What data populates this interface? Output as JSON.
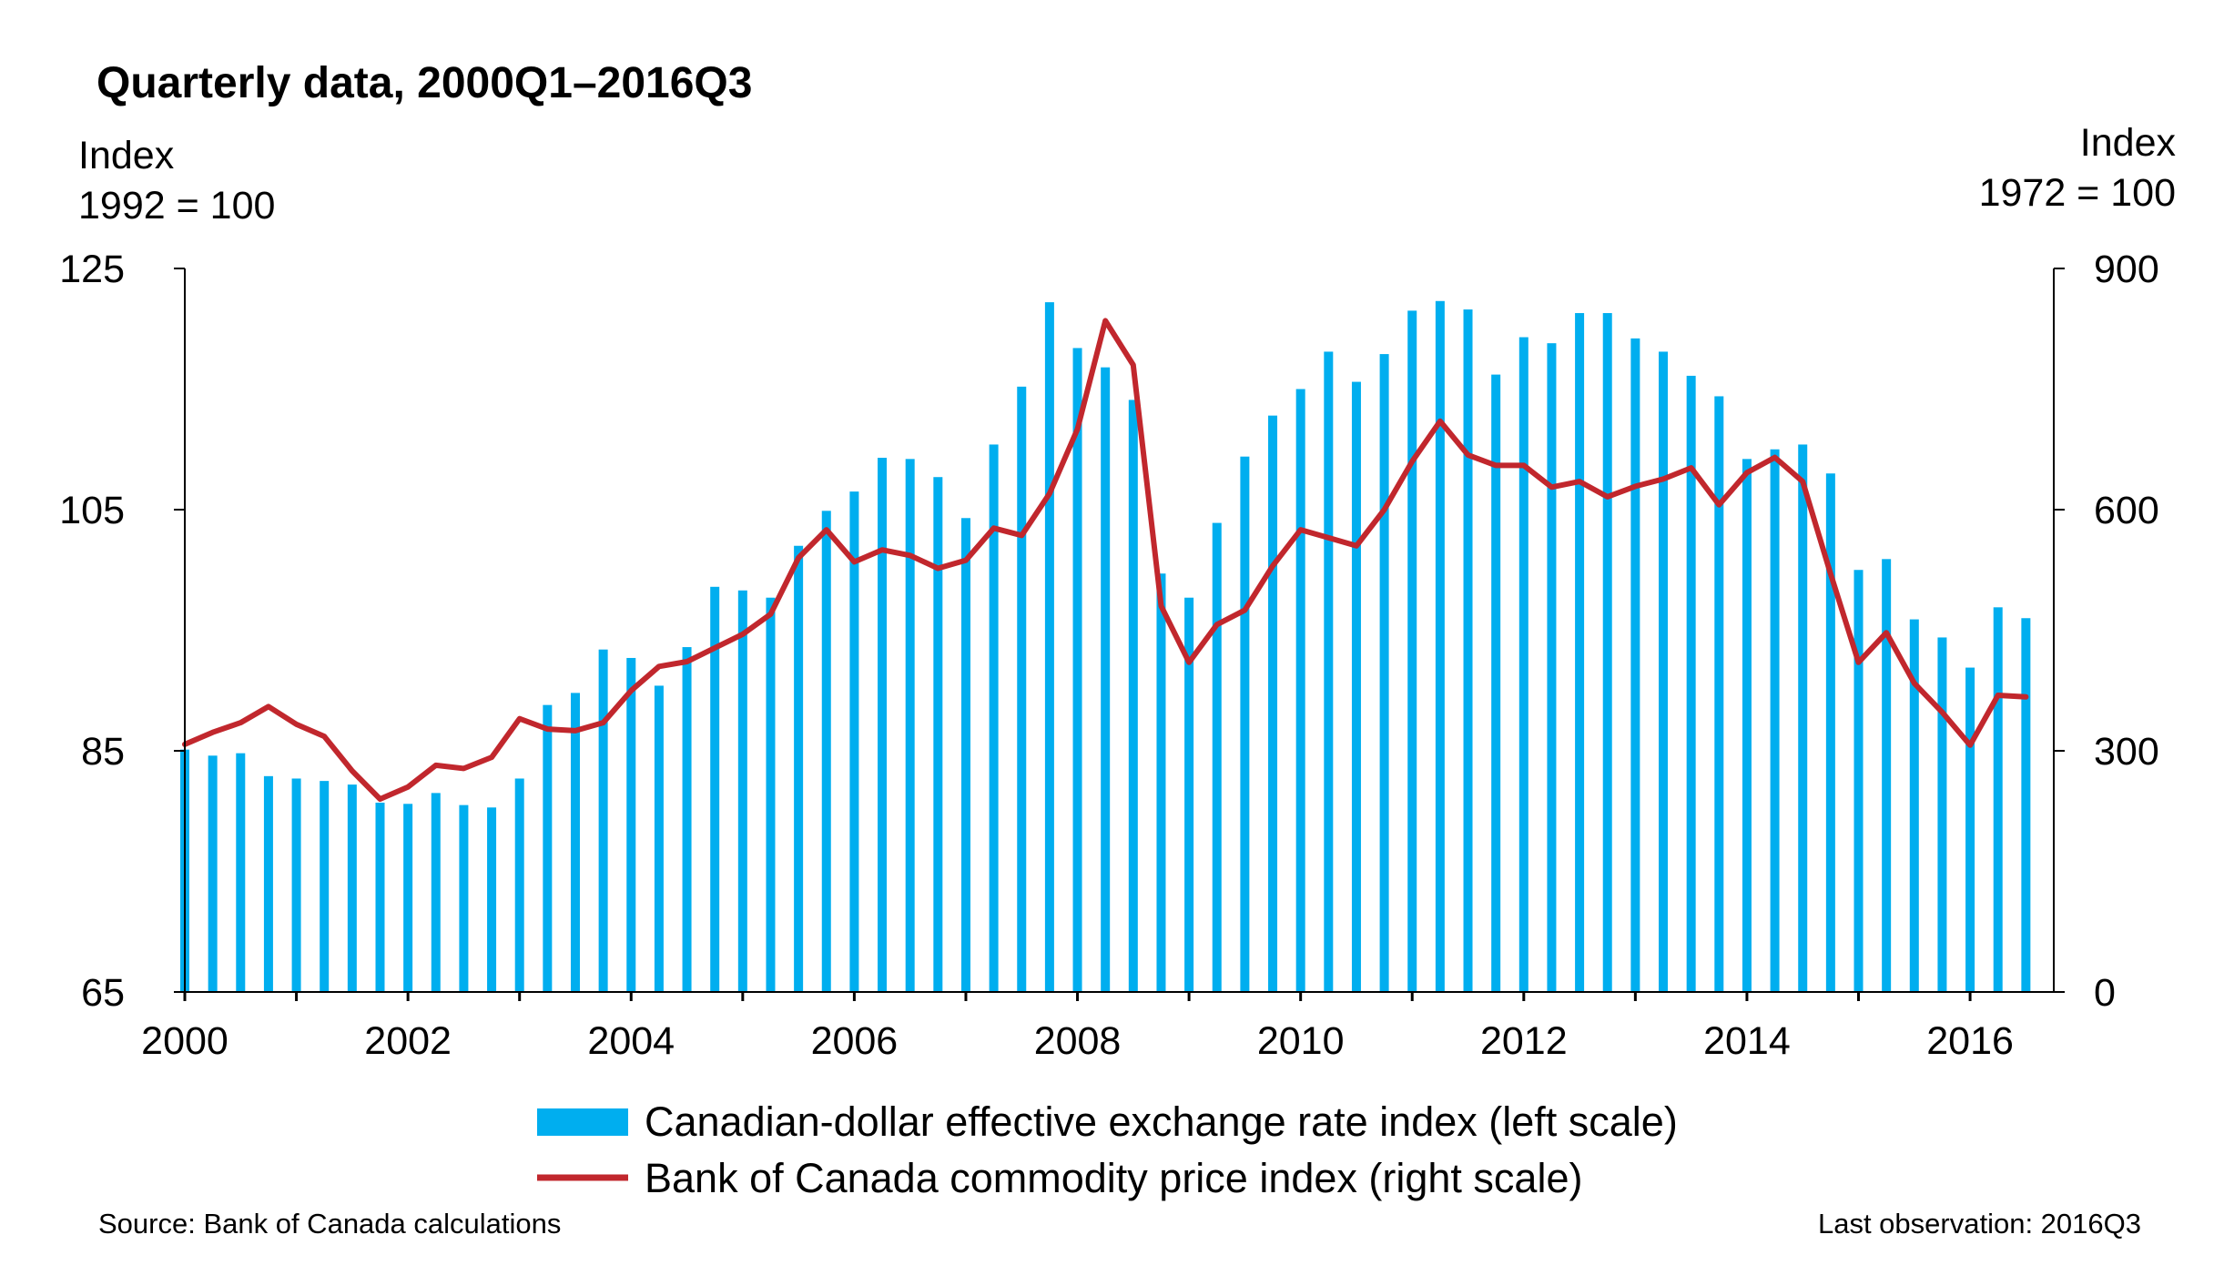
{
  "chart_data": {
    "type": "bar+line",
    "title": "Quarterly data, 2000Q1–2016Q3",
    "left_axis": {
      "label_line1": "Index",
      "label_line2": "1992 = 100",
      "range": [
        65,
        125
      ],
      "ticks": [
        "125",
        "105",
        "85",
        "65"
      ]
    },
    "right_axis": {
      "label_line1": "Index",
      "label_line2": "1972 = 100",
      "range": [
        0,
        900
      ],
      "ticks": [
        "900",
        "600",
        "300",
        "0"
      ]
    },
    "x_axis": {
      "range": [
        2000,
        2016.75
      ],
      "tick_labels": [
        "2000",
        "2002",
        "2004",
        "2006",
        "2008",
        "2010",
        "2012",
        "2014",
        "2016"
      ]
    },
    "x": [
      "2000Q1",
      "2000Q2",
      "2000Q3",
      "2000Q4",
      "2001Q1",
      "2001Q2",
      "2001Q3",
      "2001Q4",
      "2002Q1",
      "2002Q2",
      "2002Q3",
      "2002Q4",
      "2003Q1",
      "2003Q2",
      "2003Q3",
      "2003Q4",
      "2004Q1",
      "2004Q2",
      "2004Q3",
      "2004Q4",
      "2005Q1",
      "2005Q2",
      "2005Q3",
      "2005Q4",
      "2006Q1",
      "2006Q2",
      "2006Q3",
      "2006Q4",
      "2007Q1",
      "2007Q2",
      "2007Q3",
      "2007Q4",
      "2008Q1",
      "2008Q2",
      "2008Q3",
      "2008Q4",
      "2009Q1",
      "2009Q2",
      "2009Q3",
      "2009Q4",
      "2010Q1",
      "2010Q2",
      "2010Q3",
      "2010Q4",
      "2011Q1",
      "2011Q2",
      "2011Q3",
      "2011Q4",
      "2012Q1",
      "2012Q2",
      "2012Q3",
      "2012Q4",
      "2013Q1",
      "2013Q2",
      "2013Q3",
      "2013Q4",
      "2014Q1",
      "2014Q2",
      "2014Q3",
      "2014Q4",
      "2015Q1",
      "2015Q2",
      "2015Q3",
      "2015Q4",
      "2016Q1",
      "2016Q2",
      "2016Q3"
    ],
    "series": [
      {
        "name": "Canadian-dollar effective exchange rate index (left scale)",
        "type": "bar",
        "color": "#00AEEF",
        "axis": "left",
        "values": [
          85.1,
          84.6,
          84.8,
          82.9,
          82.7,
          82.5,
          82.2,
          80.7,
          80.6,
          81.5,
          80.5,
          80.3,
          82.7,
          88.8,
          89.8,
          93.4,
          92.7,
          90.4,
          93.6,
          98.6,
          98.3,
          97.7,
          102.0,
          104.9,
          106.5,
          109.3,
          109.2,
          107.7,
          104.3,
          110.4,
          115.2,
          122.2,
          118.4,
          116.8,
          114.1,
          99.7,
          97.7,
          103.9,
          109.4,
          112.8,
          115.0,
          118.1,
          115.6,
          117.9,
          121.5,
          122.3,
          121.6,
          116.2,
          119.3,
          118.8,
          121.3,
          121.3,
          119.2,
          118.1,
          116.1,
          114.4,
          109.2,
          110.0,
          110.4,
          108.0,
          100.0,
          100.9,
          95.9,
          94.4,
          91.9,
          96.9,
          96.0
        ]
      },
      {
        "name": "Bank of Canada commodity price index (right scale)",
        "type": "line",
        "color": "#C1272D",
        "axis": "right",
        "values": [
          308,
          323,
          335,
          355,
          333,
          318,
          275,
          240,
          255,
          282,
          278,
          292,
          340,
          327,
          325,
          335,
          375,
          405,
          411,
          428,
          445,
          470,
          540,
          575,
          535,
          550,
          543,
          527,
          537,
          577,
          568,
          620,
          700,
          835,
          780,
          480,
          410,
          457,
          475,
          530,
          575,
          565,
          555,
          600,
          660,
          710,
          668,
          655,
          655,
          628,
          635,
          616,
          629,
          638,
          652,
          606,
          646,
          665,
          635,
          520,
          410,
          447,
          384,
          348,
          307,
          369,
          367
        ]
      }
    ],
    "legend": [
      "Canadian-dollar effective exchange rate index (left scale)",
      "Bank of Canada commodity price index (right scale)"
    ],
    "legend_position": "bottom"
  },
  "footer": {
    "source": "Source: Bank of Canada calculations",
    "last_observation": "Last observation: 2016Q3"
  }
}
